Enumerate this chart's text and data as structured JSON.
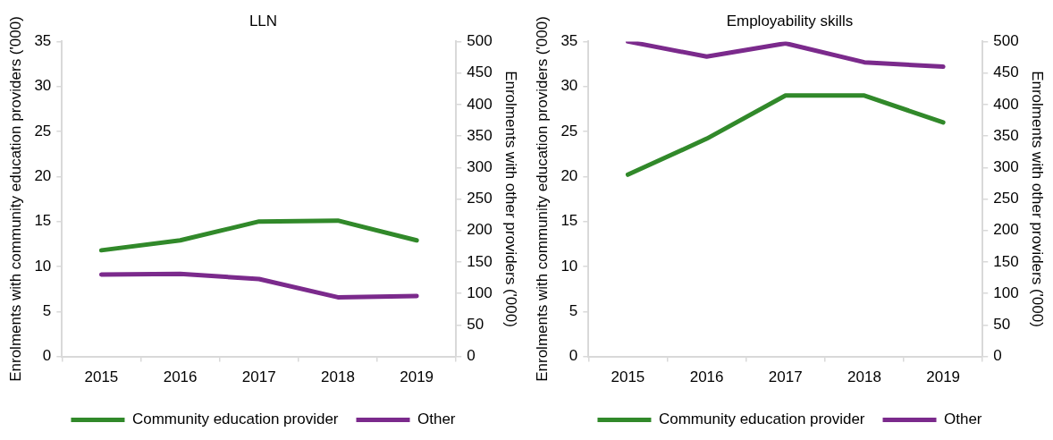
{
  "chart_data": [
    {
      "type": "line",
      "title": "LLN",
      "ylabel": "Enrolments with community education providers ('000)",
      "y2label": "Enrolments with other providers ('000)",
      "categories": [
        "2015",
        "2016",
        "2017",
        "2018",
        "2019"
      ],
      "series": [
        {
          "name": "Community education provider",
          "color": "#31892a",
          "values": [
            11.8,
            12.9,
            15.0,
            15.1,
            12.9
          ]
        },
        {
          "name": "Other",
          "color": "#7b2a8c",
          "axis": "y2",
          "values": [
            130,
            131,
            123,
            94,
            96
          ]
        }
      ],
      "ylim": [
        0,
        35
      ],
      "yticks": [
        0,
        5,
        10,
        15,
        20,
        25,
        30,
        35
      ],
      "y2lim": [
        0,
        500
      ],
      "y2ticks": [
        0,
        50,
        100,
        150,
        200,
        250,
        300,
        350,
        400,
        450,
        500
      ],
      "grid": false,
      "legend": "bottom",
      "marker": "none",
      "line_style": "solid"
    },
    {
      "type": "line",
      "title": "Employability skills",
      "ylabel": "Enrolments with community education providers ('000)",
      "y2label": "Enrolments with other providers ('000)",
      "categories": [
        "2015",
        "2016",
        "2017",
        "2018",
        "2019"
      ],
      "series": [
        {
          "name": "Community education provider",
          "color": "#31892a",
          "values": [
            20.2,
            24.2,
            29.0,
            29.0,
            26.0
          ]
        },
        {
          "name": "Other",
          "color": "#7b2a8c",
          "axis": "y2",
          "values": [
            500,
            476,
            497,
            467,
            460
          ]
        }
      ],
      "ylim": [
        0,
        35
      ],
      "yticks": [
        0,
        5,
        10,
        15,
        20,
        25,
        30,
        35
      ],
      "y2lim": [
        0,
        500
      ],
      "y2ticks": [
        0,
        50,
        100,
        150,
        200,
        250,
        300,
        350,
        400,
        450,
        500
      ],
      "grid": false,
      "legend": "bottom",
      "marker": "none",
      "line_style": "solid"
    }
  ]
}
